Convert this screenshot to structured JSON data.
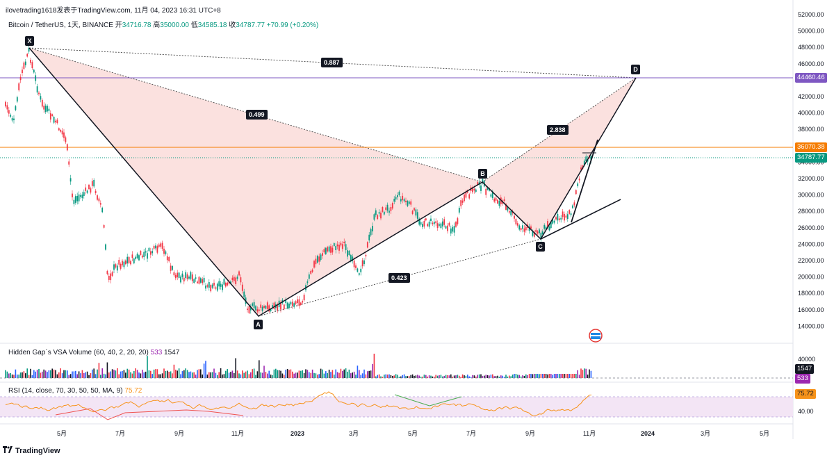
{
  "header": {
    "attribution": "ilovetrading1618发表于TradingView.com,  11月 04, 2023 16:31 UTC+8"
  },
  "symbol": {
    "name": "Bitcoin / TetherUS, 1天, BINANCE",
    "open_label": "开",
    "open": "34716.78",
    "high_label": "高",
    "high": "35000.00",
    "low_label": "低",
    "low": "34585.18",
    "close_label": "收",
    "close": "34787.77",
    "change": "+70.99 (+0.20%)"
  },
  "price_axis": {
    "ticks": [
      "52000.00",
      "50000.00",
      "48000.00",
      "46000.00",
      "44000.00",
      "42000.00",
      "40000.00",
      "38000.00",
      "36000.00",
      "34000.00",
      "32000.00",
      "30000.00",
      "28000.00",
      "26000.00",
      "24000.00",
      "22000.00",
      "20000.00",
      "18000.00",
      "16000.00",
      "14000.00"
    ],
    "tags": {
      "purple_level": "44460.46",
      "orange_level": "36070.38",
      "last_price": "34787.77"
    }
  },
  "harmonic_pattern": {
    "points": {
      "x": "X",
      "a": "A",
      "b": "B",
      "c": "C",
      "d": "D"
    },
    "ratios": {
      "xb": "0.499",
      "ac": "0.423",
      "bd": "2.838",
      "xd": "0.887"
    }
  },
  "volume_panel": {
    "legend": "Hidden Gap`s VSA Volume (60, 40, 2, 20, 20)",
    "value1": "533",
    "value2": "1547",
    "axis_tick": "40000",
    "tags": {
      "v1547": "1547",
      "v533": "533"
    }
  },
  "rsi_panel": {
    "legend": "RSI (14, close, 70, 30, 50, 50, MA, 9)",
    "value": "75.72",
    "axis_tick": "40.00",
    "tag": "75.72"
  },
  "time_axis": {
    "labels": [
      "5月",
      "7月",
      "9月",
      "11月",
      "2023",
      "3月",
      "5月",
      "7月",
      "9月",
      "11月",
      "2024",
      "3月",
      "5月"
    ]
  },
  "footer": {
    "brand": "TradingView"
  },
  "colors": {
    "purple": "#7e57c2",
    "orange": "#f57c00",
    "teal": "#089981",
    "pattern_fill": "#f8c9c4",
    "rsi_band": "#f3e5f5",
    "rsi_line": "#f7931a"
  }
}
